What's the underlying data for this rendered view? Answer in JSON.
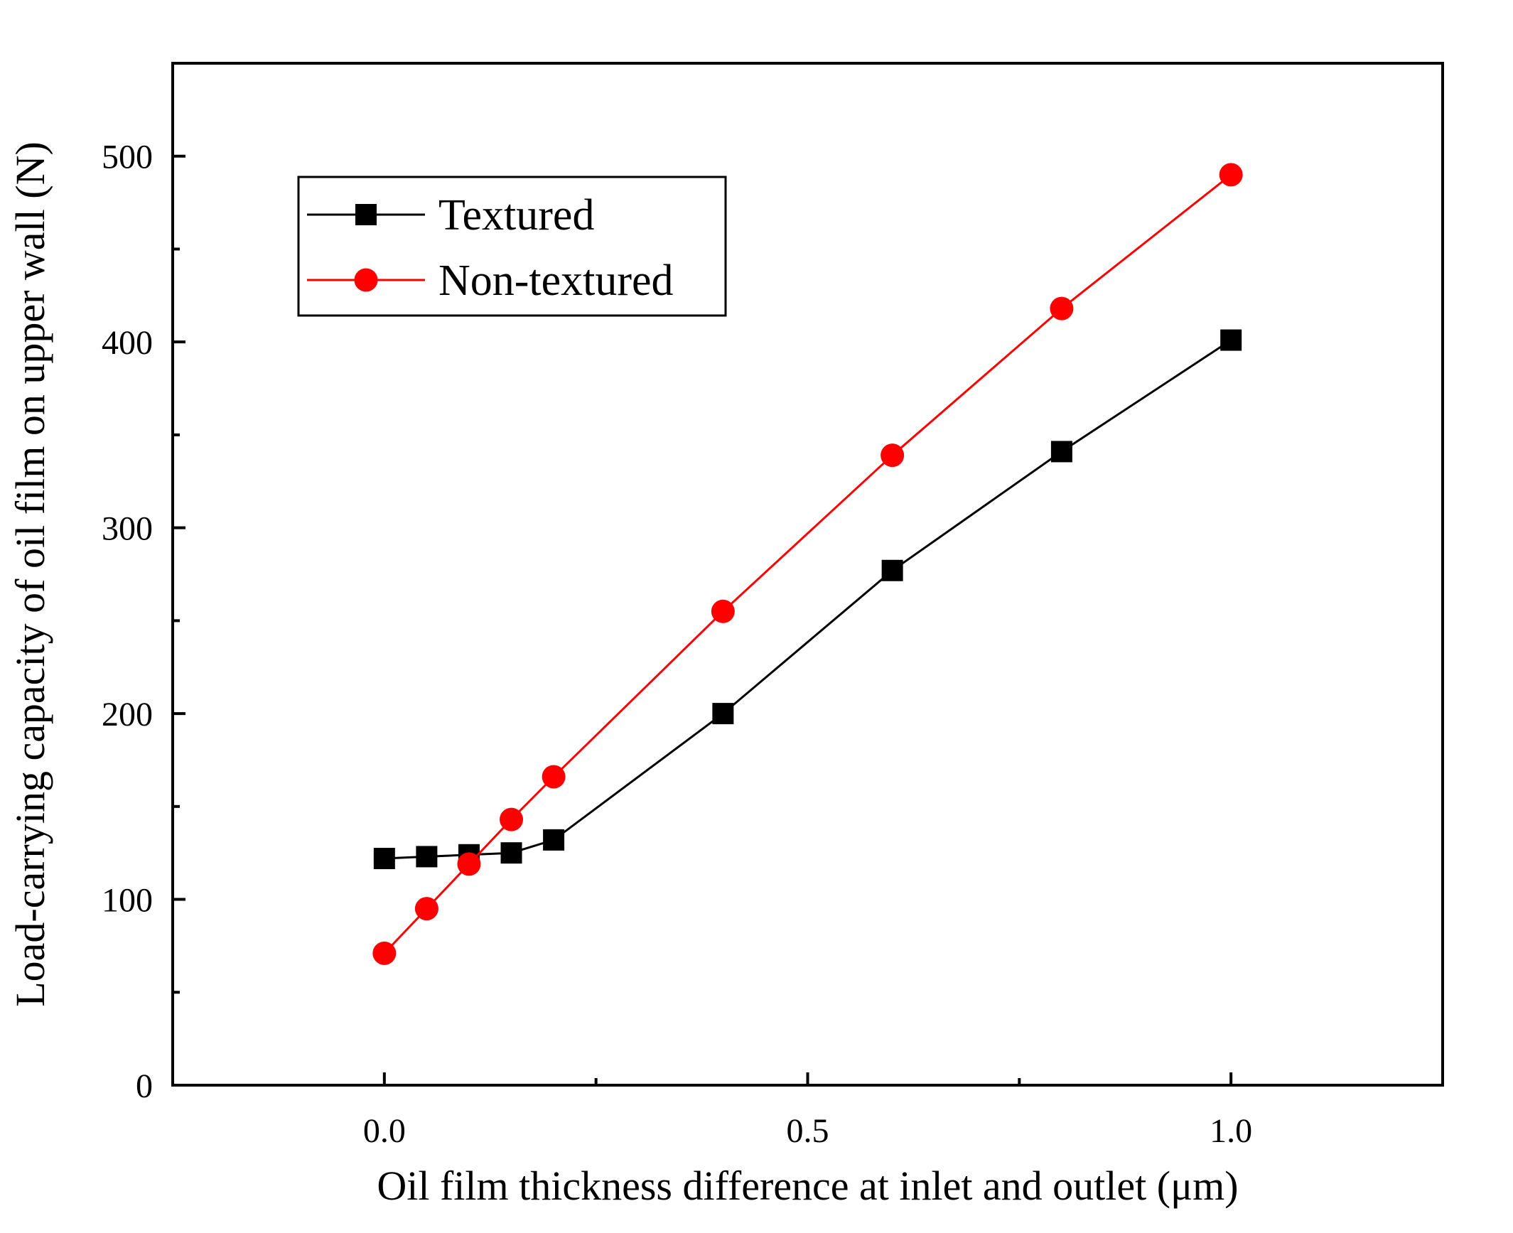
{
  "chart_data": {
    "type": "line",
    "title": "",
    "xlabel": "Oil film thickness difference at inlet and outlet (μm)",
    "ylabel": "Load-carrying capacity of oil film on upper wall (N)",
    "xlim": [
      -0.25,
      1.25
    ],
    "ylim": [
      0,
      550
    ],
    "x_ticks": [
      0.0,
      0.5,
      1.0
    ],
    "x_tick_labels": [
      "0.0",
      "0.5",
      "1.0"
    ],
    "x_minor_ticks": [
      0.25,
      0.75
    ],
    "y_ticks": [
      0,
      100,
      200,
      300,
      400,
      500
    ],
    "y_tick_labels": [
      "0",
      "100",
      "200",
      "300",
      "400",
      "500"
    ],
    "y_minor_ticks": [
      50,
      150,
      250,
      350,
      450
    ],
    "grid": false,
    "legend_position": "top-left",
    "series": [
      {
        "name": "Textured",
        "color": "#000000",
        "marker": "square",
        "x": [
          0.0,
          0.05,
          0.1,
          0.15,
          0.2,
          0.4,
          0.6,
          0.8,
          1.0
        ],
        "values": [
          122,
          123,
          124,
          125,
          132,
          200,
          277,
          341,
          401
        ]
      },
      {
        "name": "Non-textured",
        "color": "#ff0000",
        "marker": "circle",
        "x": [
          0.0,
          0.05,
          0.1,
          0.15,
          0.2,
          0.4,
          0.6,
          0.8,
          1.0
        ],
        "values": [
          71,
          95,
          119,
          143,
          166,
          255,
          339,
          418,
          490
        ]
      }
    ]
  }
}
